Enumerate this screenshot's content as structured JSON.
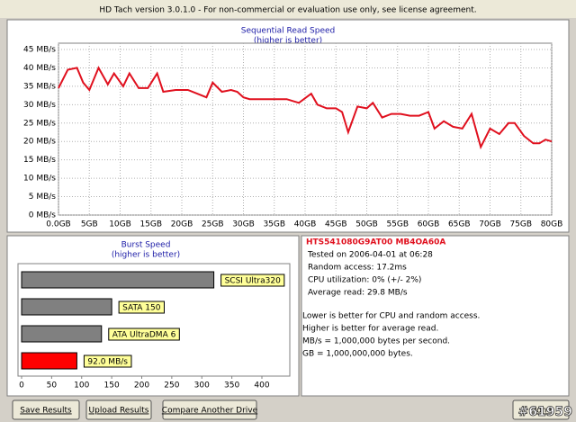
{
  "window": {
    "title": "HD Tach version 3.0.1.0  - For non-commercial or evaluation use only, see license agreement."
  },
  "chart_data": [
    {
      "type": "line",
      "title": "Sequential Read Speed",
      "subtitle": "(higher is better)",
      "x": [
        0,
        1.5,
        3,
        4,
        5,
        6.5,
        8,
        9,
        10.5,
        11.5,
        13,
        14.5,
        16,
        17,
        19,
        21,
        22.5,
        24,
        25,
        26.5,
        28,
        29,
        30,
        31,
        33,
        35,
        37,
        39,
        41,
        42,
        43.5,
        45,
        46,
        47,
        48.5,
        50,
        51,
        52.5,
        54,
        55.5,
        57,
        58.5,
        60,
        61,
        62.5,
        64,
        65.5,
        67,
        68.5,
        70,
        71.5,
        73,
        74,
        75.5,
        77,
        78,
        79,
        80
      ],
      "values": [
        34.5,
        39.5,
        40,
        36,
        34,
        40,
        35.5,
        38.5,
        35,
        38.5,
        34.5,
        34.5,
        38.5,
        33.5,
        34,
        34,
        33,
        32,
        36,
        33.5,
        34,
        33.5,
        32,
        31.5,
        31.5,
        31.5,
        31.5,
        30.5,
        33,
        30,
        29,
        29,
        28,
        22.5,
        29.5,
        29,
        30.5,
        26.5,
        27.5,
        27.5,
        27,
        27,
        28,
        23.5,
        25.5,
        24,
        23.5,
        27.5,
        18.5,
        23.5,
        22,
        25,
        25,
        21.5,
        19.5,
        19.5,
        20.5,
        20
      ],
      "color": "#e0101e",
      "grid": true,
      "xlim": [
        0,
        80
      ],
      "xticks": [
        {
          "value": 0,
          "label": "0.0GB"
        },
        {
          "value": 5,
          "label": "5GB"
        },
        {
          "value": 10,
          "label": "10GB"
        },
        {
          "value": 15,
          "label": "15GB"
        },
        {
          "value": 20,
          "label": "20GB"
        },
        {
          "value": 25,
          "label": "25GB"
        },
        {
          "value": 30,
          "label": "30GB"
        },
        {
          "value": 35,
          "label": "35GB"
        },
        {
          "value": 40,
          "label": "40GB"
        },
        {
          "value": 45,
          "label": "45GB"
        },
        {
          "value": 50,
          "label": "50GB"
        },
        {
          "value": 55,
          "label": "55GB"
        },
        {
          "value": 60,
          "label": "60GB"
        },
        {
          "value": 65,
          "label": "65GB"
        },
        {
          "value": 70,
          "label": "70GB"
        },
        {
          "value": 75,
          "label": "75GB"
        },
        {
          "value": 80,
          "label": "80GB"
        }
      ],
      "ylim": [
        0,
        45
      ],
      "yticks": [
        {
          "value": 0,
          "label": "0 MB/s"
        },
        {
          "value": 5,
          "label": "5 MB/s"
        },
        {
          "value": 10,
          "label": "10 MB/s"
        },
        {
          "value": 15,
          "label": "15 MB/s"
        },
        {
          "value": 20,
          "label": "20 MB/s"
        },
        {
          "value": 25,
          "label": "25 MB/s"
        },
        {
          "value": 30,
          "label": "30 MB/s"
        },
        {
          "value": 35,
          "label": "35 MB/s"
        },
        {
          "value": 40,
          "label": "40 MB/s"
        },
        {
          "value": 45,
          "label": "45 MB/s"
        }
      ]
    },
    {
      "type": "bar",
      "orientation": "horizontal",
      "title": "Burst Speed",
      "subtitle": "(higher is better)",
      "categories": [
        "SCSI Ultra320",
        "SATA 150",
        "ATA UltraDMA 6",
        null
      ],
      "values": [
        320,
        150,
        133,
        92
      ],
      "value_labels": [
        null,
        null,
        null,
        "92.0 MB/s"
      ],
      "colors": [
        "#808080",
        "#808080",
        "#808080",
        "#ff0000"
      ],
      "grid": false,
      "xlim": [
        0,
        400
      ],
      "xticks": [
        0,
        50,
        100,
        150,
        200,
        250,
        300,
        350,
        400
      ]
    }
  ],
  "drive_info": {
    "model": "HTS541080G9AT00 MB4OA60A",
    "lines": [
      "Tested on 2006-04-01 at 06:28",
      "Random access: 17.2ms",
      "CPU utilization: 0% (+/- 2%)",
      "Average read: 29.8 MB/s"
    ]
  },
  "notes": [
    "Lower is better for CPU and random access.",
    "Higher is better for average read.",
    "MB/s = 1,000,000 bytes per second.",
    "GB = 1,000,000,000 bytes."
  ],
  "buttons": [
    "Save Results",
    "Upload Results",
    "Compare Another Drive",
    "Done"
  ],
  "watermark": "#61959"
}
